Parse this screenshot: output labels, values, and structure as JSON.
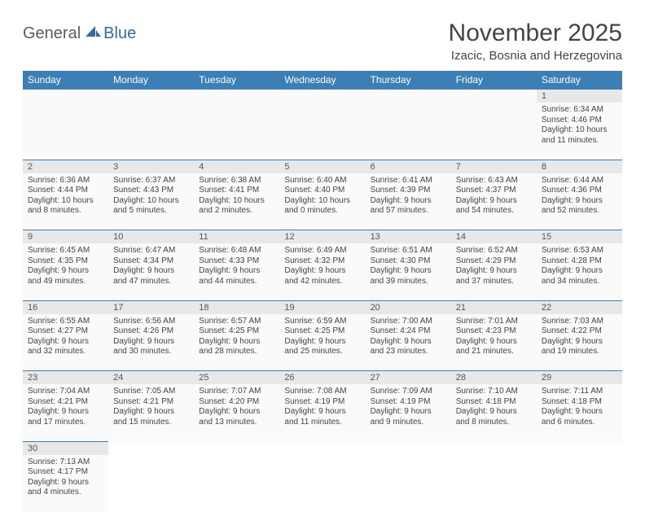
{
  "brand": {
    "part1": "General",
    "part2": "Blue"
  },
  "title": "November 2025",
  "location": "Izacic, Bosnia and Herzegovina",
  "colors": {
    "header_bg": "#3b7fb6",
    "header_text": "#ffffff",
    "daynum_bg": "#e8e8e8",
    "cell_bg": "#fafafa",
    "row_border": "#3b7fb6",
    "text": "#444444",
    "logo_gray": "#5c5c5c",
    "logo_blue": "#2f6da4"
  },
  "weekdays": [
    "Sunday",
    "Monday",
    "Tuesday",
    "Wednesday",
    "Thursday",
    "Friday",
    "Saturday"
  ],
  "weeks": [
    [
      null,
      null,
      null,
      null,
      null,
      null,
      {
        "n": "1",
        "sr": "Sunrise: 6:34 AM",
        "ss": "Sunset: 4:46 PM",
        "d1": "Daylight: 10 hours",
        "d2": "and 11 minutes."
      }
    ],
    [
      {
        "n": "2",
        "sr": "Sunrise: 6:36 AM",
        "ss": "Sunset: 4:44 PM",
        "d1": "Daylight: 10 hours",
        "d2": "and 8 minutes."
      },
      {
        "n": "3",
        "sr": "Sunrise: 6:37 AM",
        "ss": "Sunset: 4:43 PM",
        "d1": "Daylight: 10 hours",
        "d2": "and 5 minutes."
      },
      {
        "n": "4",
        "sr": "Sunrise: 6:38 AM",
        "ss": "Sunset: 4:41 PM",
        "d1": "Daylight: 10 hours",
        "d2": "and 2 minutes."
      },
      {
        "n": "5",
        "sr": "Sunrise: 6:40 AM",
        "ss": "Sunset: 4:40 PM",
        "d1": "Daylight: 10 hours",
        "d2": "and 0 minutes."
      },
      {
        "n": "6",
        "sr": "Sunrise: 6:41 AM",
        "ss": "Sunset: 4:39 PM",
        "d1": "Daylight: 9 hours",
        "d2": "and 57 minutes."
      },
      {
        "n": "7",
        "sr": "Sunrise: 6:43 AM",
        "ss": "Sunset: 4:37 PM",
        "d1": "Daylight: 9 hours",
        "d2": "and 54 minutes."
      },
      {
        "n": "8",
        "sr": "Sunrise: 6:44 AM",
        "ss": "Sunset: 4:36 PM",
        "d1": "Daylight: 9 hours",
        "d2": "and 52 minutes."
      }
    ],
    [
      {
        "n": "9",
        "sr": "Sunrise: 6:45 AM",
        "ss": "Sunset: 4:35 PM",
        "d1": "Daylight: 9 hours",
        "d2": "and 49 minutes."
      },
      {
        "n": "10",
        "sr": "Sunrise: 6:47 AM",
        "ss": "Sunset: 4:34 PM",
        "d1": "Daylight: 9 hours",
        "d2": "and 47 minutes."
      },
      {
        "n": "11",
        "sr": "Sunrise: 6:48 AM",
        "ss": "Sunset: 4:33 PM",
        "d1": "Daylight: 9 hours",
        "d2": "and 44 minutes."
      },
      {
        "n": "12",
        "sr": "Sunrise: 6:49 AM",
        "ss": "Sunset: 4:32 PM",
        "d1": "Daylight: 9 hours",
        "d2": "and 42 minutes."
      },
      {
        "n": "13",
        "sr": "Sunrise: 6:51 AM",
        "ss": "Sunset: 4:30 PM",
        "d1": "Daylight: 9 hours",
        "d2": "and 39 minutes."
      },
      {
        "n": "14",
        "sr": "Sunrise: 6:52 AM",
        "ss": "Sunset: 4:29 PM",
        "d1": "Daylight: 9 hours",
        "d2": "and 37 minutes."
      },
      {
        "n": "15",
        "sr": "Sunrise: 6:53 AM",
        "ss": "Sunset: 4:28 PM",
        "d1": "Daylight: 9 hours",
        "d2": "and 34 minutes."
      }
    ],
    [
      {
        "n": "16",
        "sr": "Sunrise: 6:55 AM",
        "ss": "Sunset: 4:27 PM",
        "d1": "Daylight: 9 hours",
        "d2": "and 32 minutes."
      },
      {
        "n": "17",
        "sr": "Sunrise: 6:56 AM",
        "ss": "Sunset: 4:26 PM",
        "d1": "Daylight: 9 hours",
        "d2": "and 30 minutes."
      },
      {
        "n": "18",
        "sr": "Sunrise: 6:57 AM",
        "ss": "Sunset: 4:25 PM",
        "d1": "Daylight: 9 hours",
        "d2": "and 28 minutes."
      },
      {
        "n": "19",
        "sr": "Sunrise: 6:59 AM",
        "ss": "Sunset: 4:25 PM",
        "d1": "Daylight: 9 hours",
        "d2": "and 25 minutes."
      },
      {
        "n": "20",
        "sr": "Sunrise: 7:00 AM",
        "ss": "Sunset: 4:24 PM",
        "d1": "Daylight: 9 hours",
        "d2": "and 23 minutes."
      },
      {
        "n": "21",
        "sr": "Sunrise: 7:01 AM",
        "ss": "Sunset: 4:23 PM",
        "d1": "Daylight: 9 hours",
        "d2": "and 21 minutes."
      },
      {
        "n": "22",
        "sr": "Sunrise: 7:03 AM",
        "ss": "Sunset: 4:22 PM",
        "d1": "Daylight: 9 hours",
        "d2": "and 19 minutes."
      }
    ],
    [
      {
        "n": "23",
        "sr": "Sunrise: 7:04 AM",
        "ss": "Sunset: 4:21 PM",
        "d1": "Daylight: 9 hours",
        "d2": "and 17 minutes."
      },
      {
        "n": "24",
        "sr": "Sunrise: 7:05 AM",
        "ss": "Sunset: 4:21 PM",
        "d1": "Daylight: 9 hours",
        "d2": "and 15 minutes."
      },
      {
        "n": "25",
        "sr": "Sunrise: 7:07 AM",
        "ss": "Sunset: 4:20 PM",
        "d1": "Daylight: 9 hours",
        "d2": "and 13 minutes."
      },
      {
        "n": "26",
        "sr": "Sunrise: 7:08 AM",
        "ss": "Sunset: 4:19 PM",
        "d1": "Daylight: 9 hours",
        "d2": "and 11 minutes."
      },
      {
        "n": "27",
        "sr": "Sunrise: 7:09 AM",
        "ss": "Sunset: 4:19 PM",
        "d1": "Daylight: 9 hours",
        "d2": "and 9 minutes."
      },
      {
        "n": "28",
        "sr": "Sunrise: 7:10 AM",
        "ss": "Sunset: 4:18 PM",
        "d1": "Daylight: 9 hours",
        "d2": "and 8 minutes."
      },
      {
        "n": "29",
        "sr": "Sunrise: 7:11 AM",
        "ss": "Sunset: 4:18 PM",
        "d1": "Daylight: 9 hours",
        "d2": "and 6 minutes."
      }
    ],
    [
      {
        "n": "30",
        "sr": "Sunrise: 7:13 AM",
        "ss": "Sunset: 4:17 PM",
        "d1": "Daylight: 9 hours",
        "d2": "and 4 minutes."
      },
      null,
      null,
      null,
      null,
      null,
      null
    ]
  ]
}
